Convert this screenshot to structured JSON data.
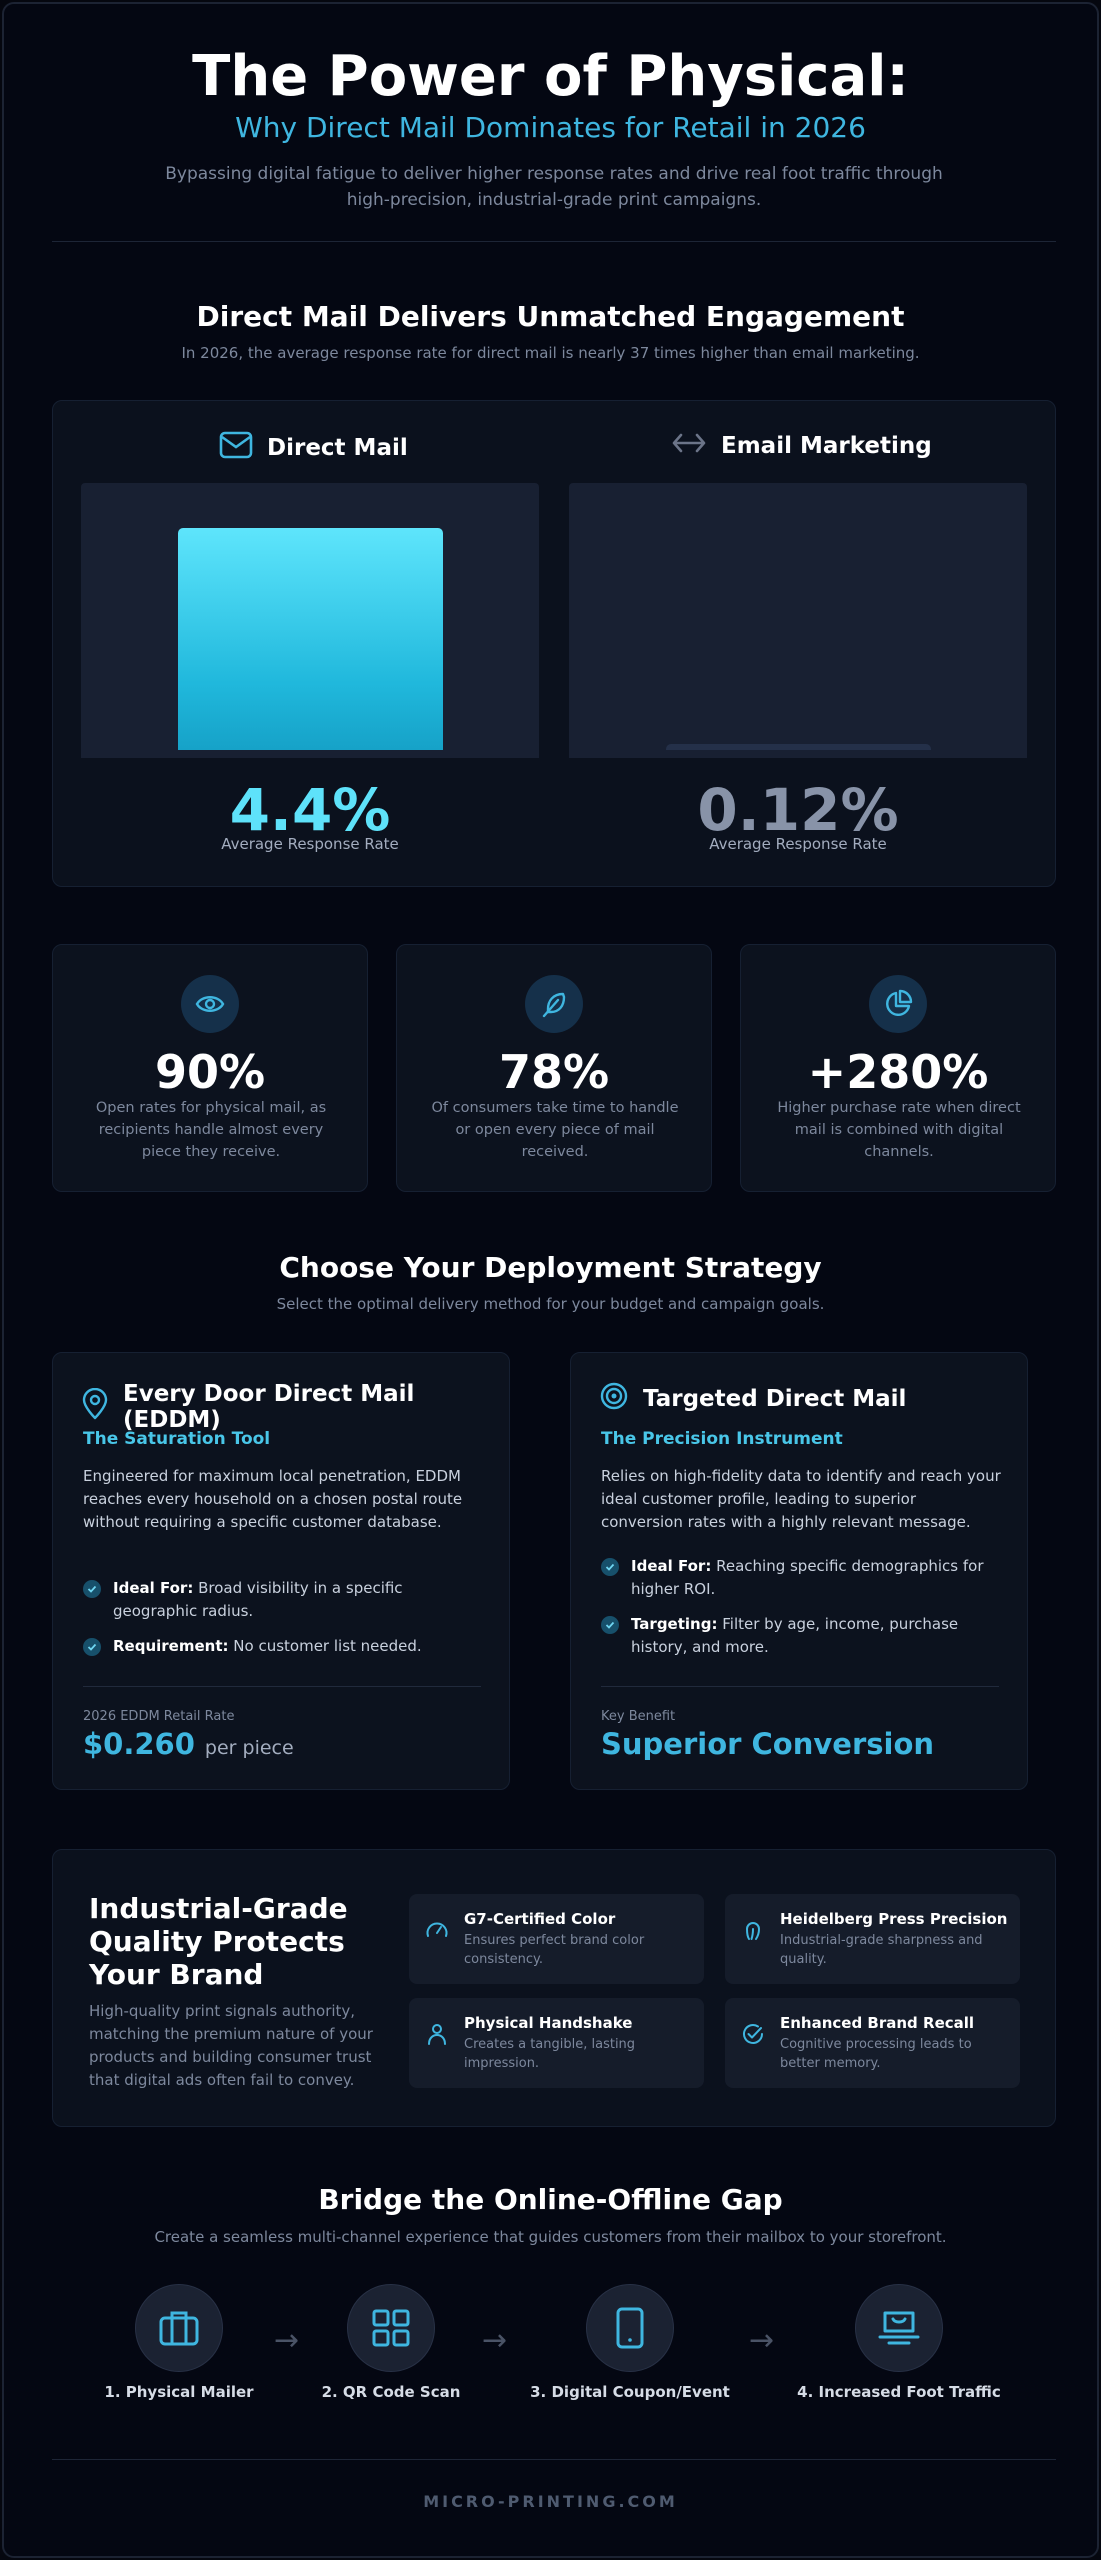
{
  "header": {
    "title": "The Power of Physical:",
    "subtitle": "Why Direct Mail Dominates for Retail in 2026",
    "intro": "Bypassing digital fatigue to deliver higher response rates and drive real foot traffic through high-precision, industrial-grade print campaigns."
  },
  "engagement": {
    "title": "Direct Mail Delivers Unmatched Engagement",
    "subtitle": "In 2026, the average response rate for direct mail is nearly 37 times higher than email marketing.",
    "columns": [
      {
        "icon": "envelope-icon",
        "label": "Direct Mail",
        "value_text": "4.4%",
        "caption": "Average Response Rate"
      },
      {
        "icon": "arrows-horizontal-icon",
        "label": "Email Marketing",
        "value_text": "0.12%",
        "caption": "Average Response Rate"
      }
    ]
  },
  "chart_data": {
    "type": "bar",
    "categories": [
      "Direct Mail",
      "Email Marketing"
    ],
    "values": [
      4.4,
      0.12
    ],
    "ylabel": "Average Response Rate",
    "ylim": [
      0,
      5.3
    ],
    "grid": false,
    "colors": [
      "#20b8dc",
      "#243049"
    ]
  },
  "stats": [
    {
      "icon": "eye-icon",
      "value": "90%",
      "description": "Open rates for physical mail, as recipients handle almost every piece they receive."
    },
    {
      "icon": "feather-icon",
      "value": "78%",
      "description": "Of consumers take time to handle or open every piece of mail received."
    },
    {
      "icon": "pie-chart-icon",
      "value": "+280%",
      "description": "Higher purchase rate when direct mail is combined with digital channels."
    }
  ],
  "strategy": {
    "title": "Choose Your Deployment Strategy",
    "subtitle": "Select the optimal delivery method for your budget and campaign goals.",
    "eddm": {
      "title": "Every Door Direct Mail (EDDM)",
      "tag": "The Saturation Tool",
      "body": "Engineered for maximum local penetration, EDDM reaches every household on a chosen postal route without requiring a specific customer database.",
      "points": [
        {
          "label": "Ideal For:",
          "text": "Broad visibility in a specific geographic radius."
        },
        {
          "label": "Requirement:",
          "text": "No customer list needed."
        }
      ],
      "footer_label": "2026 EDDM Retail Rate",
      "footer_value": "$0.260",
      "footer_unit": "per piece"
    },
    "targeted": {
      "title": "Targeted Direct Mail",
      "tag": "The Precision Instrument",
      "body": "Relies on high-fidelity data to identify and reach your ideal customer profile, leading to superior conversion rates with a highly relevant message.",
      "points": [
        {
          "label": "Ideal For:",
          "text": "Reaching specific demographics for higher ROI."
        },
        {
          "label": "Targeting:",
          "text": "Filter by age, income, purchase history, and more."
        }
      ],
      "footer_label": "Key Benefit",
      "footer_value": "Superior Conversion"
    }
  },
  "quality": {
    "title": "Industrial-Grade Quality Protects Your Brand",
    "body": "High-quality print signals authority, matching the premium nature of your products and building consumer trust that digital ads often fail to convey.",
    "tiles": [
      {
        "icon": "gauge-icon",
        "title": "G7-Certified Color",
        "description": "Ensures perfect brand color consistency."
      },
      {
        "icon": "fingerprint-icon",
        "title": "Heidelberg Press Precision",
        "description": "Industrial-grade sharpness and quality."
      },
      {
        "icon": "person-icon",
        "title": "Physical Handshake",
        "description": "Creates a tangible, lasting impression."
      },
      {
        "icon": "badge-check-icon",
        "title": "Enhanced Brand Recall",
        "description": "Cognitive processing leads to better memory."
      }
    ]
  },
  "bridge": {
    "title": "Bridge the Online-Offline Gap",
    "subtitle": "Create a seamless multi-channel experience that guides customers from their mailbox to your storefront.",
    "steps": [
      {
        "icon": "briefcase-icon",
        "label": "1. Physical Mailer"
      },
      {
        "icon": "qr-code-icon",
        "label": "2. QR Code Scan"
      },
      {
        "icon": "smartphone-icon",
        "label": "3. Digital Coupon/Event"
      },
      {
        "icon": "storefront-icon",
        "label": "4. Increased Foot Traffic"
      }
    ],
    "arrow": "→"
  },
  "footer": {
    "text": "MICRO-PRINTING.COM"
  },
  "colors": {
    "accent": "#3fb6e0",
    "accent_light": "#49c6e8",
    "muted": "#7d889d",
    "background": "#040712"
  }
}
